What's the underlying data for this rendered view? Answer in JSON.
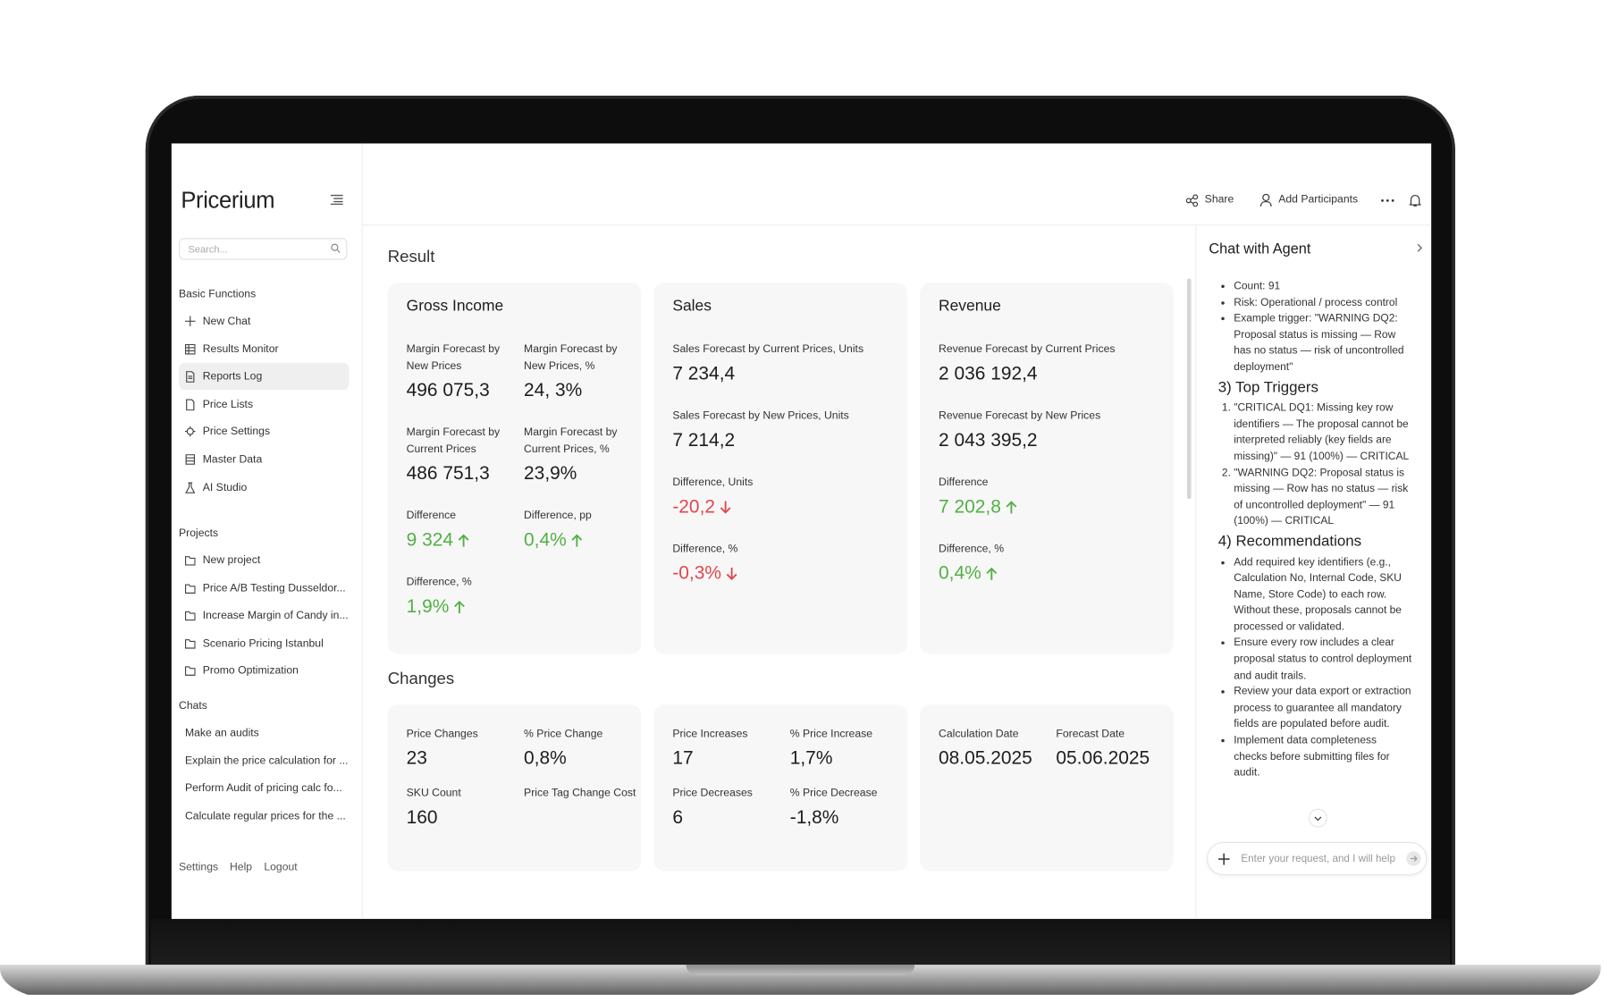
{
  "sidebar": {
    "logo": "Pricerium",
    "search_placeholder": "Search...",
    "sections": [
      {
        "title": "Basic Functions",
        "items": [
          "New Chat",
          "Results Monitor",
          "Reports Log",
          "Price Lists",
          "Price Settings",
          "Master Data",
          "AI Studio"
        ]
      },
      {
        "title": "Projects",
        "items": [
          "New project",
          "Price A/B Testing Dusseldor...",
          "Increase Margin of Candy in...",
          "Scenario Pricing Istanbul",
          "Promo Optimization"
        ]
      },
      {
        "title": "Chats",
        "items": [
          "Make an audits",
          "Explain the price calculation for ...",
          "Perform Audit of pricing calc fo...",
          "Calculate regular prices for the ..."
        ]
      }
    ],
    "footer": [
      "Settings",
      "Help",
      "Logout"
    ]
  },
  "header": {
    "actions": [
      "Share",
      "Add Participants"
    ]
  },
  "result": {
    "title": "Result",
    "cards": [
      {
        "title": "Gross Income",
        "metrics": [
          {
            "label": "Margin Forecast by New Prices",
            "value": "496 075,3"
          },
          {
            "label": "Margin Forecast by New Prices, %",
            "value": "24, 3%"
          },
          {
            "label": "Margin Forecast by Current Prices",
            "value": "486 751,3"
          },
          {
            "label": "Margin Forecast by Current Prices, %",
            "value": "23,9%"
          },
          {
            "label": "Difference",
            "value": "9 324",
            "trend": "up"
          },
          {
            "label": "Difference, pp",
            "value": "0,4%",
            "trend": "up"
          },
          {
            "label": "Difference, %",
            "value": "1,9%",
            "trend": "up"
          }
        ]
      },
      {
        "title": "Sales",
        "metrics": [
          {
            "label": "Sales Forecast by Current Prices, Units",
            "value": "7 234,4"
          },
          {
            "label": "Sales Forecast by New Prices, Units",
            "value": "7 214,2"
          },
          {
            "label": "Difference, Units",
            "value": "-20,2",
            "trend": "down"
          },
          {
            "label": "Difference, %",
            "value": "-0,3%",
            "trend": "down"
          }
        ]
      },
      {
        "title": "Revenue",
        "metrics": [
          {
            "label": "Revenue Forecast by Current Prices",
            "value": "2 036 192,4"
          },
          {
            "label": "Revenue Forecast by New Prices",
            "value": "2 043 395,2"
          },
          {
            "label": "Difference",
            "value": "7 202,8",
            "trend": "up"
          },
          {
            "label": "Difference, %",
            "value": "0,4%",
            "trend": "up"
          }
        ]
      }
    ]
  },
  "changes": {
    "title": "Changes",
    "cards": [
      {
        "metrics": [
          {
            "label": "Price Changes",
            "value": "23"
          },
          {
            "label": "% Price Change",
            "value": "0,8%"
          },
          {
            "label": "SKU Count",
            "value": "160"
          },
          {
            "label": "Price Tag Change Cost"
          }
        ]
      },
      {
        "metrics": [
          {
            "label": "Price Increases",
            "value": "17"
          },
          {
            "label": "% Price Increase",
            "value": "1,7%"
          },
          {
            "label": "Price Decreases",
            "value": "6"
          },
          {
            "label": "% Price Decrease",
            "value": "-1,8%"
          }
        ]
      },
      {
        "metrics": [
          {
            "label": "Calculation Date",
            "value": "08.05.2025"
          },
          {
            "label": "Forecast Date",
            "value": "05.06.2025"
          }
        ]
      }
    ]
  },
  "chat": {
    "title": "Chat with Agent",
    "blocks": [
      {
        "list": "bullet",
        "items": [
          "Count: 91",
          "Risk: Operational / process control",
          "Example trigger: \"WARNING DQ2: Proposal status is missing — Row has no status — risk of uncontrolled deployment\""
        ]
      },
      {
        "heading": "3) Top Triggers",
        "list": "ordered",
        "items": [
          "\"CRITICAL DQ1: Missing key row identifiers — The proposal cannot be interpreted reliably (key fields are missing)\" — 91 (100%) — CRITICAL",
          "\"WARNING DQ2: Proposal status is missing — Row has no status — risk of uncontrolled deployment\" — 91 (100%) — CRITICAL"
        ]
      },
      {
        "heading": "4) Recommendations",
        "list": "bullet",
        "items": [
          "Add required key identifiers (e.g., Calculation No, Internal Code, SKU Name, Store Code) to each row. Without these, proposals cannot be processed or validated.",
          "Ensure every row includes a clear proposal status to control deployment and audit trails.",
          "Review your data export or extraction process to guarantee all mandatory fields are populated before audit.",
          "Implement data completeness checks before submitting files for audit."
        ]
      }
    ],
    "input_placeholder": "Enter your request, and I will help"
  }
}
